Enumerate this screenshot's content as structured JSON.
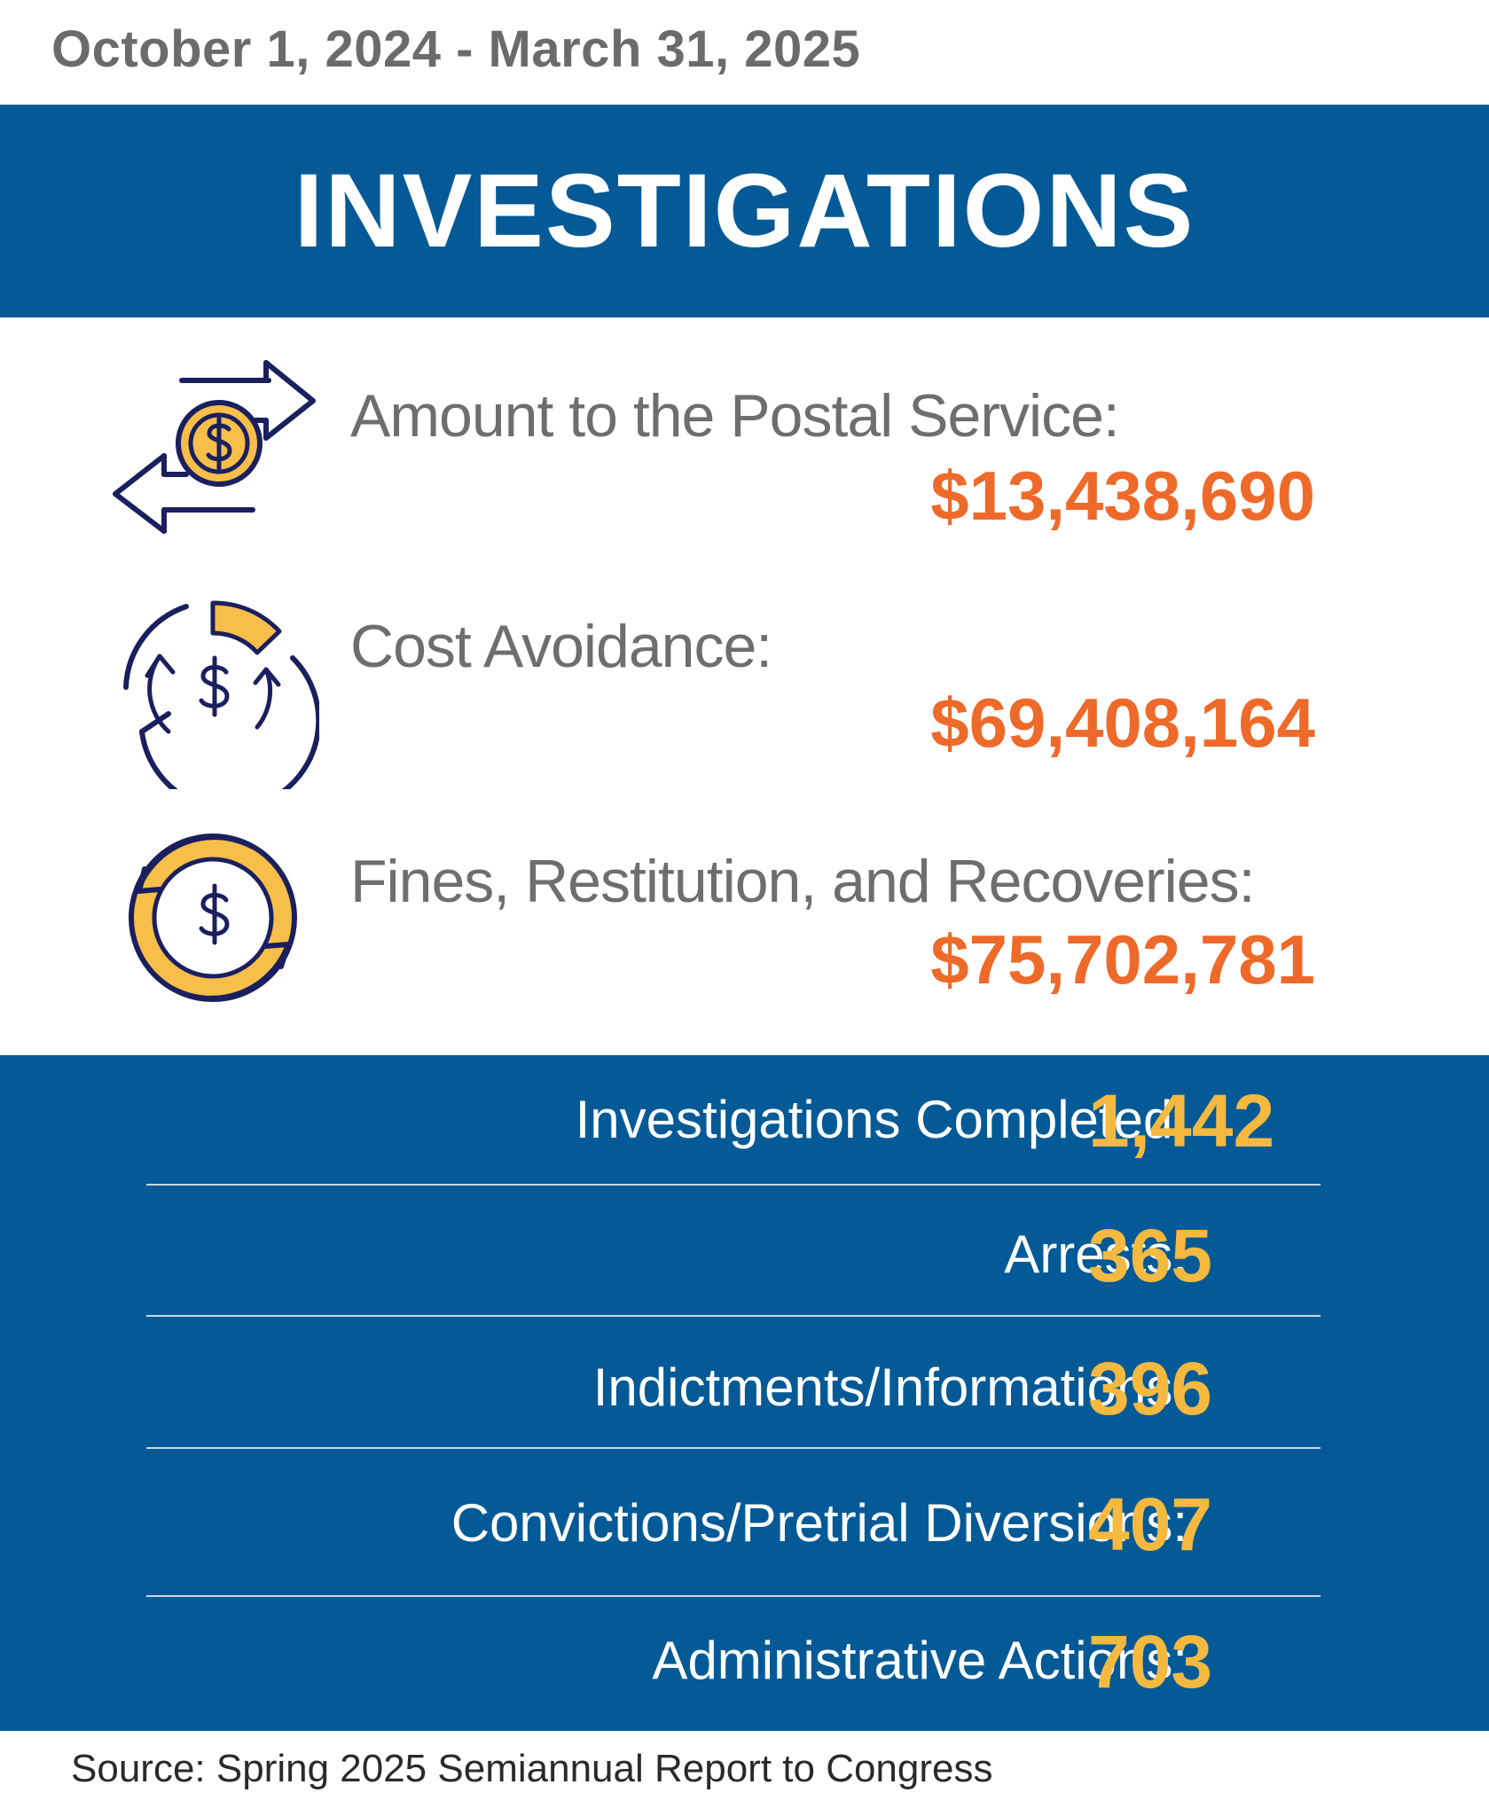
{
  "header": {
    "date_range": "October 1, 2024 - March 31, 2025",
    "title": "INVESTIGATIONS"
  },
  "metrics": [
    {
      "icon": "money-transfer-arrows-icon",
      "label": "Amount to the Postal Service:",
      "value": "$13,438,690"
    },
    {
      "icon": "circular-savings-icon",
      "label": "Cost Avoidance:",
      "value": "$69,408,164"
    },
    {
      "icon": "recovery-cycle-icon",
      "label": "Fines, Restitution, and Recoveries:",
      "value": "$75,702,781"
    }
  ],
  "stats": [
    {
      "label": "Investigations Completed:",
      "value": "1,442"
    },
    {
      "label": "Arrests:",
      "value": "365"
    },
    {
      "label": "Indictments/Informations:",
      "value": "396"
    },
    {
      "label": "Convictions/Pretrial Diversions:",
      "value": "407"
    },
    {
      "label": "Administrative Actions:",
      "value": "703"
    }
  ],
  "footer": {
    "source": "Source: Spring 2025 Semiannual Report to Congress"
  },
  "colors": {
    "banner_blue": "#045a96",
    "accent_orange": "#ee6a2a",
    "accent_yellow": "#f6b940",
    "icon_navy": "#1a1f5e",
    "icon_gold": "#f8be4a"
  }
}
